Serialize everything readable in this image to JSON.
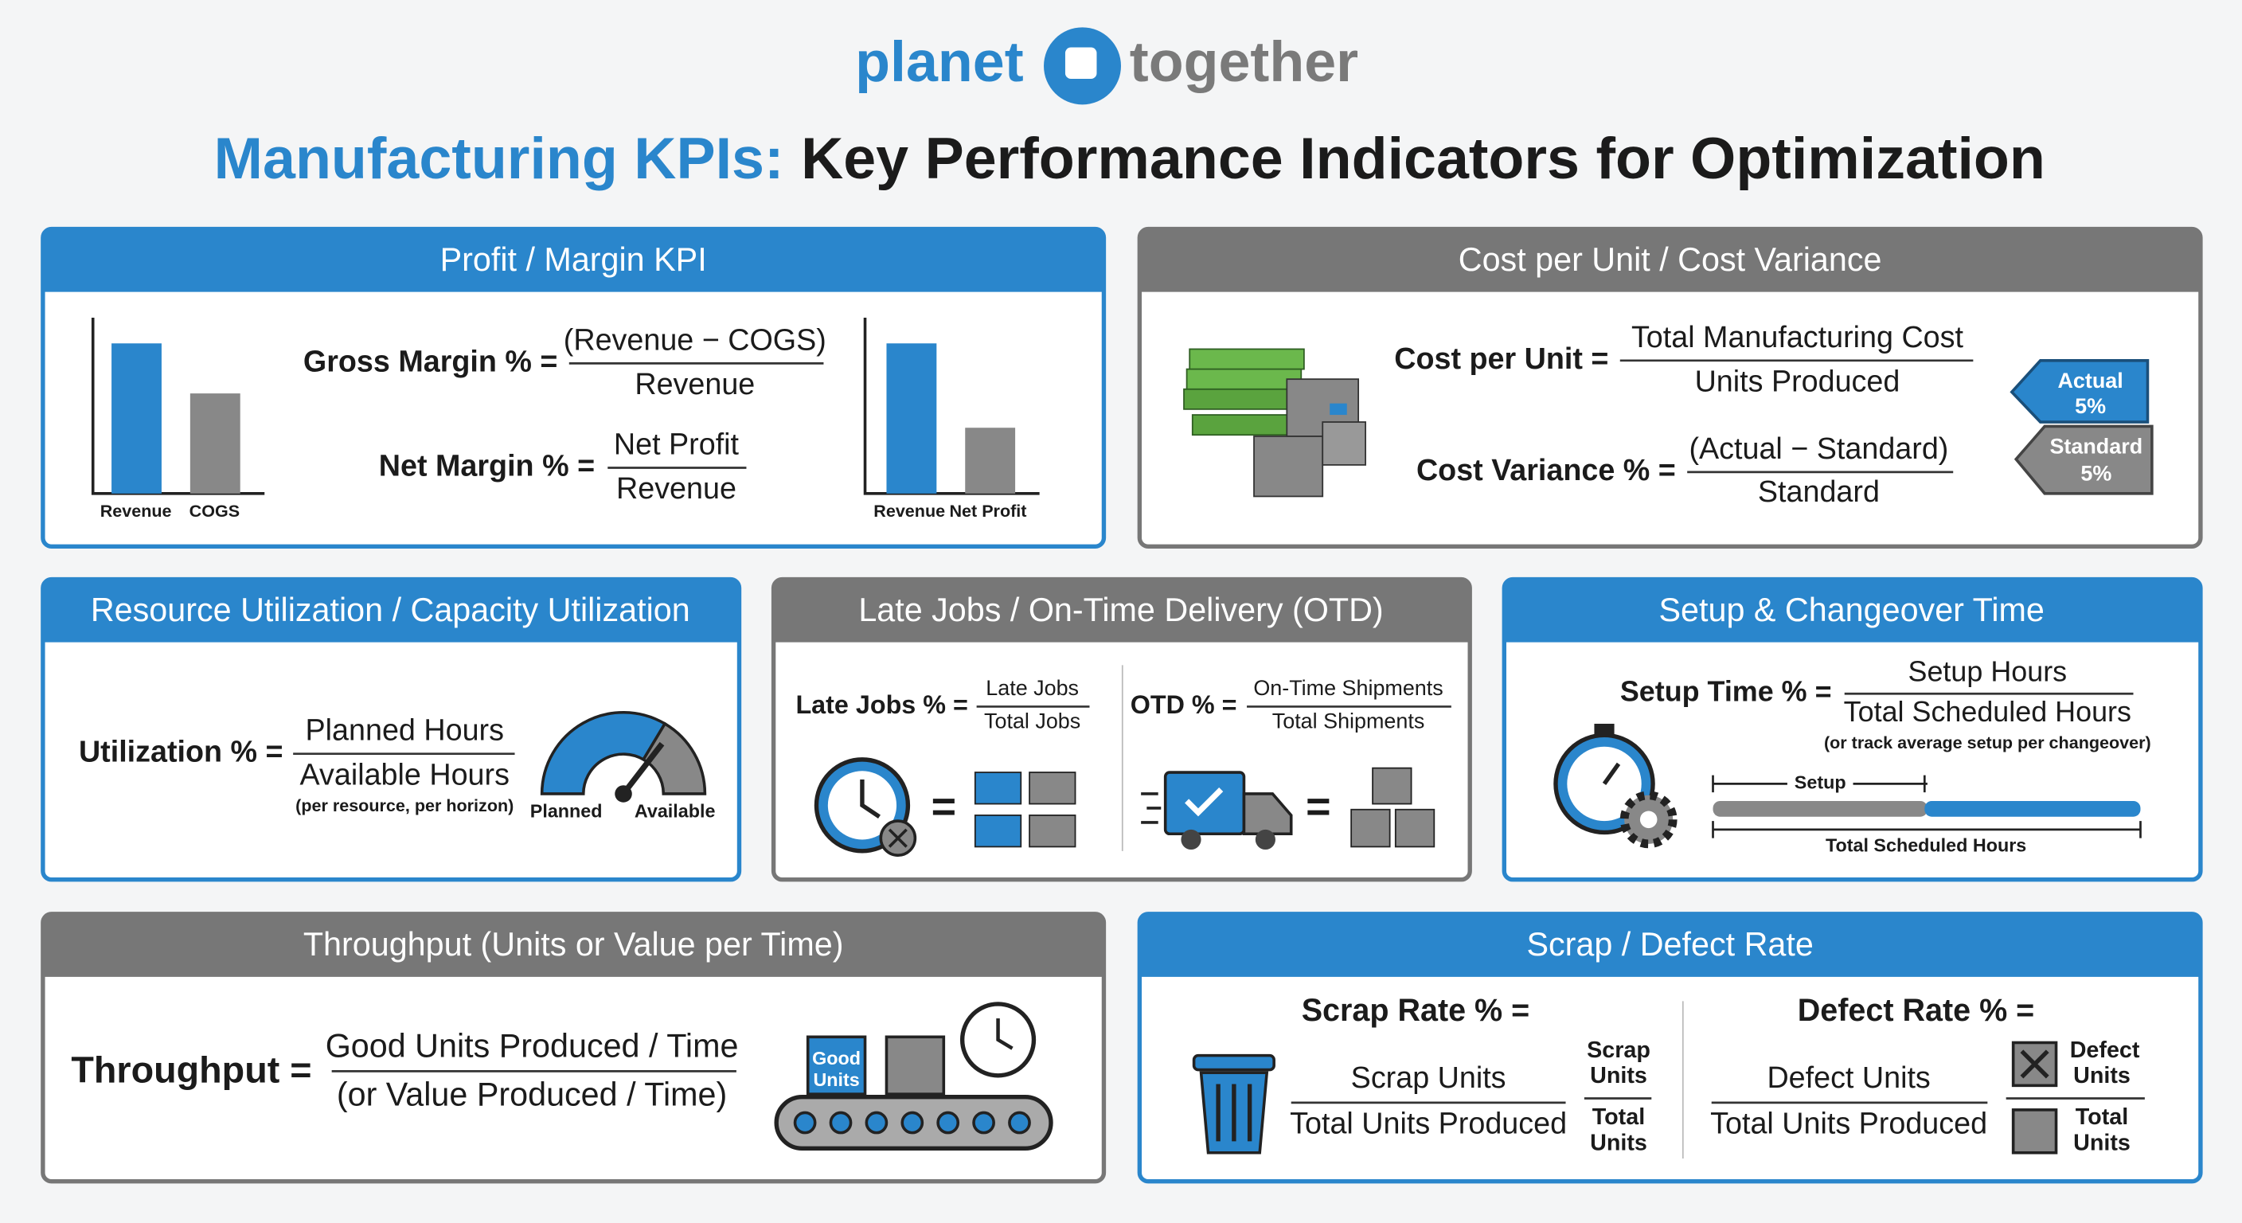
{
  "header": {
    "logo_left": "planet",
    "logo_right": "together",
    "title_highlight": "Manufacturing KPIs:",
    "title_rest": "Key Performance Indicators for Optimization"
  },
  "panels": [
    {
      "title": "Profit / Margin KPI",
      "chart1_labels": [
        "Revenue",
        "COGS"
      ],
      "gross_margin": {
        "label": "Gross Margin % =",
        "numerator": "(Revenue − COGS)",
        "denominator": "Revenue"
      },
      "net_margin": {
        "label": "Net Margin % =",
        "numerator": "Net Profit",
        "denominator": "Revenue"
      },
      "chart2_labels": [
        "Revenue",
        "Net Profit"
      ]
    },
    {
      "title": "Cost per Unit / Cost Variance",
      "cost_per_unit": {
        "label": "Cost per Unit =",
        "numerator": "Total Manufacturing Cost",
        "denominator": "Units Produced"
      },
      "cost_variance": {
        "label": "Cost Variance % =",
        "numerator": "(Actual − Standard)",
        "denominator": "Standard"
      },
      "tags": [
        {
          "name": "Actual",
          "value": "5%"
        },
        {
          "name": "Standard",
          "value": "5%"
        }
      ]
    },
    {
      "title": "Resource Utilization / Capacity Utilization",
      "utilization": {
        "label": "Utilization % =",
        "numerator": "Planned Hours",
        "denominator": "Available Hours",
        "note": "(per resource, per horizon)"
      },
      "gauge_labels": [
        "Planned",
        "Available"
      ]
    },
    {
      "title": "Late Jobs / On-Time Delivery (OTD)",
      "late_jobs": {
        "label": "Late Jobs % =",
        "numerator": "Late Jobs",
        "denominator": "Total Jobs"
      },
      "otd": {
        "label": "OTD % =",
        "numerator": "On-Time Shipments",
        "denominator": "Total Shipments"
      },
      "equals": "="
    },
    {
      "title": "Setup & Changeover Time",
      "setup": {
        "label": "Setup Time % =",
        "numerator": "Setup Hours",
        "denominator": "Total Scheduled Hours",
        "note": "(or track average setup per changeover)"
      },
      "bar_labels": {
        "setup": "Setup",
        "total": "Total Scheduled Hours"
      }
    },
    {
      "title": "Throughput (Units or Value per Time)",
      "throughput": {
        "label": "Throughput =",
        "line1": "Good Units Produced / Time",
        "line2": "(or Value Produced / Time)"
      },
      "box_label": [
        "Good",
        "Units"
      ]
    },
    {
      "title": "Scrap / Defect Rate",
      "scrap": {
        "label": "Scrap Rate % =",
        "numerator": "Scrap Units",
        "denominator": "Total Units Produced",
        "legend_top": [
          "Scrap",
          "Units"
        ],
        "legend_bottom": [
          "Total",
          "Units"
        ]
      },
      "defect": {
        "label": "Defect Rate % =",
        "numerator": "Defect Units",
        "denominator": "Total Units Produced",
        "legend_top": [
          "Defect",
          "Units"
        ],
        "legend_bottom": [
          "Total",
          "Units"
        ]
      }
    }
  ]
}
